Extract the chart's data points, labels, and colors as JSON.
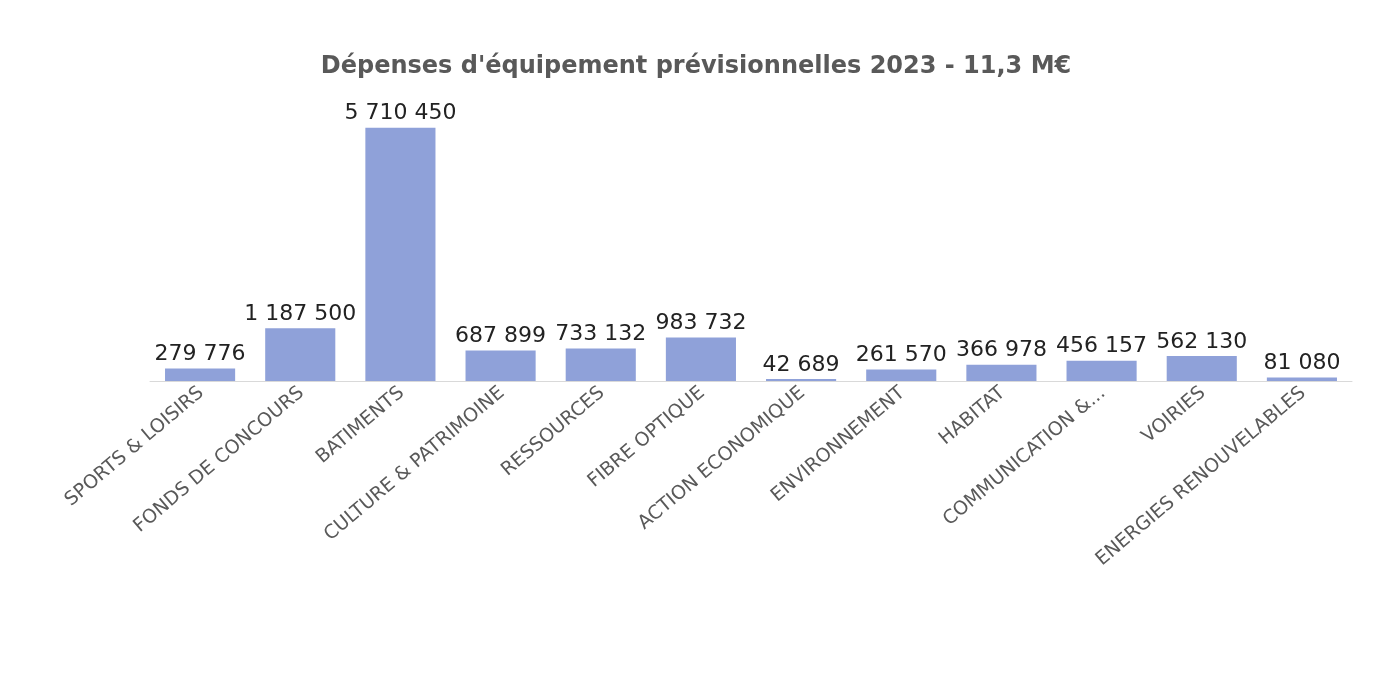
{
  "chart_data": {
    "type": "bar",
    "title": "Dépenses d'équipement prévisionnelles 2023 - 11,3 M€",
    "categories": [
      "SPORTS & LOISIRS",
      "FONDS DE CONCOURS",
      "BATIMENTS",
      "CULTURE & PATRIMOINE",
      "RESSOURCES",
      "FIBRE OPTIQUE",
      "ACTION ECONOMIQUE",
      "ENVIRONNEMENT",
      "HABITAT",
      "COMMUNICATION &...",
      "VOIRIES",
      "ENERGIES RENOUVELABLES"
    ],
    "values": [
      279776,
      1187500,
      5710450,
      687899,
      733132,
      983732,
      42689,
      261570,
      366978,
      456157,
      562130,
      81080
    ],
    "value_labels": [
      "279 776",
      "1 187 500",
      "5 710 450",
      "687 899",
      "733 132",
      "983 732",
      "42 689",
      "261 570",
      "366 978",
      "456 157",
      "562 130",
      "81 080"
    ],
    "color": "#8fa1d9"
  }
}
